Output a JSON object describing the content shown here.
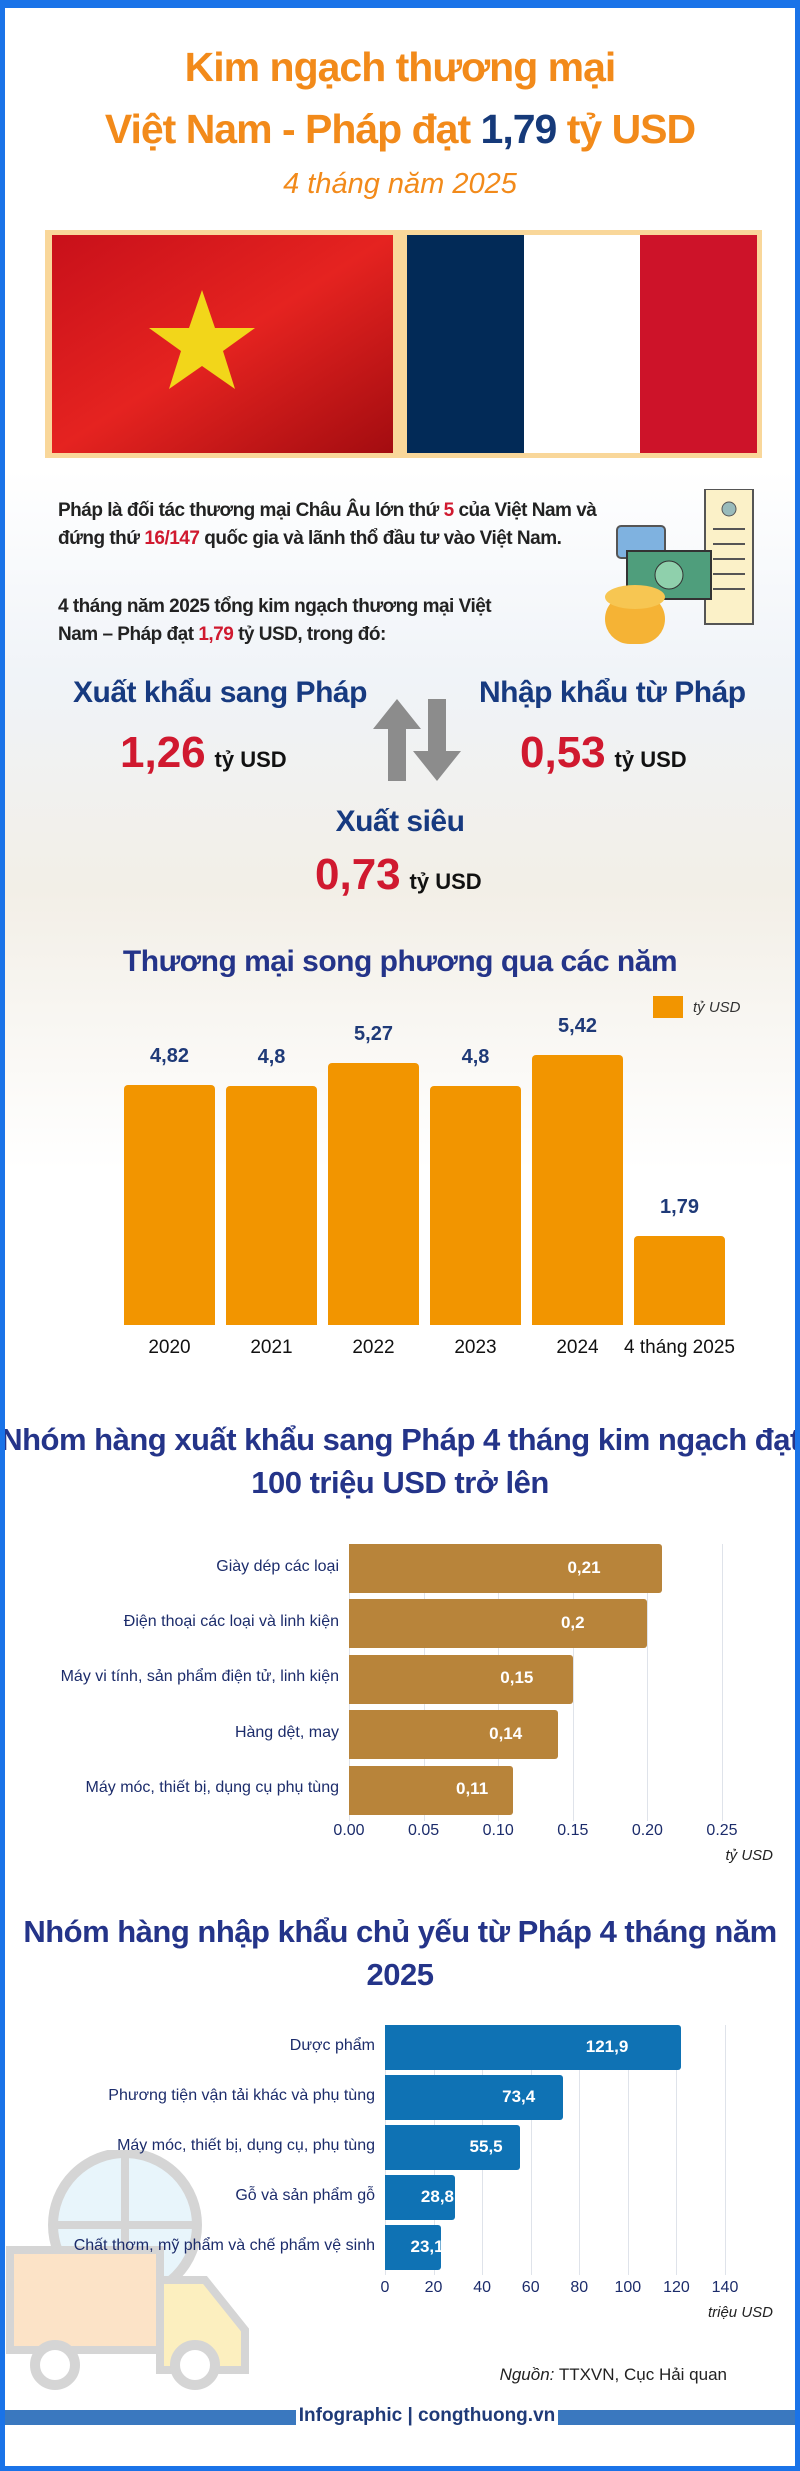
{
  "header": {
    "title_line1": "Kim ngạch thương mại",
    "title_line2_prefix": "Việt Nam - Pháp đạt ",
    "title_value": "1,79",
    "title_line2_suffix": " tỷ USD",
    "subtitle": "4 tháng năm 2025"
  },
  "intro": {
    "p1_a": "Pháp là đối tác thương mại Châu Âu lớn thứ ",
    "p1_rank": "5",
    "p1_b": " của Việt Nam và đứng thứ ",
    "p1_invest_rank": "16/147",
    "p1_c": " quốc gia và lãnh thổ đầu tư vào Việt Nam.",
    "p2_a": "4 tháng năm 2025 tổng kim ngạch thương mại Việt Nam –  Pháp đạt ",
    "p2_value": "1,79",
    "p2_b": " tỷ USD, trong đó:"
  },
  "summary": {
    "export_label": "Xuất khẩu sang Pháp",
    "export_value": "1,26",
    "import_label": "Nhập khẩu từ Pháp",
    "import_value": "0,53",
    "surplus_label": "Xuất siêu",
    "surplus_value": "0,73",
    "unit": "tỷ USD"
  },
  "colors": {
    "title": "#f28a1a",
    "navy": "#243489",
    "red": "#d0192f",
    "bar1": "#f29500",
    "bar2": "#b8843a",
    "bar3": "#0f72b4",
    "frame": "#1a73e8"
  },
  "chart_data": [
    {
      "type": "bar",
      "title": "Thương mại song phương qua các năm",
      "legend": "tỷ USD",
      "legend_position": "top-right",
      "categories": [
        "2020",
        "2021",
        "2022",
        "2023",
        "2024",
        "4 tháng 2025"
      ],
      "values": [
        4.82,
        4.8,
        5.27,
        4.8,
        5.42,
        1.79
      ],
      "labels": [
        "4,82",
        "4,8",
        "5,27",
        "4,8",
        "5,42",
        "1,79"
      ]
    },
    {
      "type": "bar",
      "orientation": "horizontal",
      "title": "Nhóm hàng xuất khẩu sang Pháp 4 tháng kim ngạch đạt 100 triệu USD trở lên",
      "categories": [
        "Giày dép các loại",
        "Điện thoại các loại và linh kiện",
        "Máy vi tính, sản phẩm điện tử, linh kiện",
        "Hàng dệt, may",
        "Máy móc, thiết bị, dụng cụ phụ tùng"
      ],
      "values": [
        0.21,
        0.2,
        0.15,
        0.14,
        0.11
      ],
      "labels": [
        "0,21",
        "0,2",
        "0,15",
        "0,14",
        "0,11"
      ],
      "xlim": [
        0,
        0.25
      ],
      "ticks": [
        "0.00",
        "0.05",
        "0.10",
        "0.15",
        "0.20",
        "0.25"
      ],
      "xlabel": "tỷ USD",
      "grid": true
    },
    {
      "type": "bar",
      "orientation": "horizontal",
      "title": "Nhóm hàng nhập khẩu chủ yếu từ Pháp 4 tháng năm 2025",
      "categories": [
        "Dược phẩm",
        "Phương tiện vận tải khác và phụ tùng",
        "Máy móc, thiết bị, dụng cụ, phụ tùng",
        "Gỗ và sản phẩm gỗ",
        "Chất thơm, mỹ phẩm và chế phẩm vệ sinh"
      ],
      "values": [
        121.9,
        73.4,
        55.5,
        28.8,
        23.1
      ],
      "labels": [
        "121,9",
        "73,4",
        "55,5",
        "28,8",
        "23,1"
      ],
      "xlim": [
        0,
        140
      ],
      "ticks": [
        "0",
        "20",
        "40",
        "60",
        "80",
        "100",
        "120",
        "140"
      ],
      "xlabel": "triệu USD",
      "grid": true
    }
  ],
  "footer": {
    "source_label": "Nguồn:",
    "source_text": " TTXVN, Cục Hải quan",
    "brand": "Infographic | congthuong.vn"
  }
}
